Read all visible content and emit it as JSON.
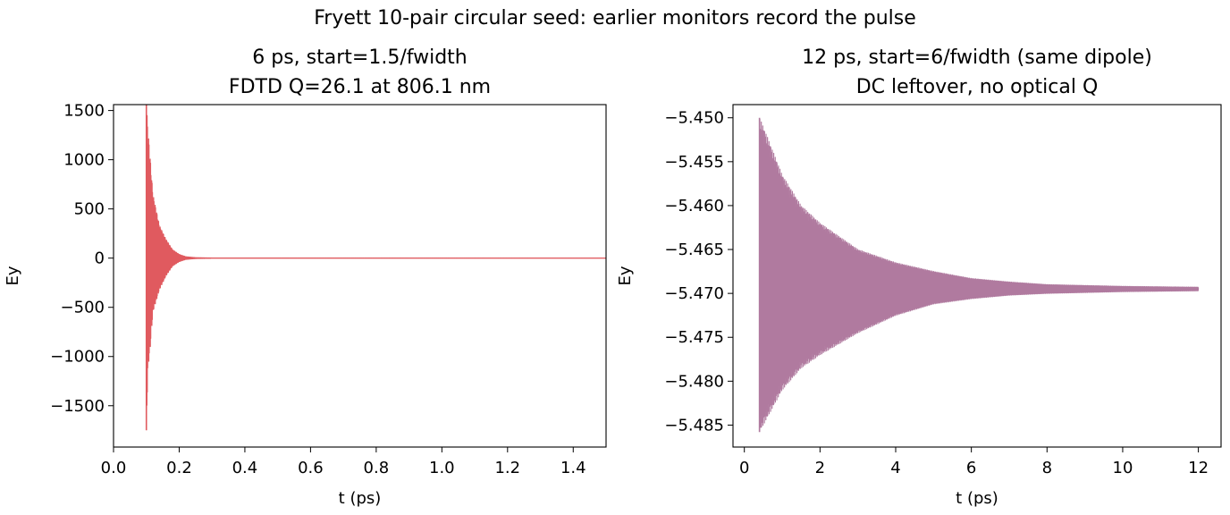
{
  "suptitle": "Fryett 10-pair circular seed: earlier monitors record the pulse",
  "chart_data": [
    {
      "type": "line",
      "title": "6 ps, start=1.5/fwidth",
      "subtitle": "FDTD Q=26.1 at 806.1 nm",
      "xlabel": "t (ps)",
      "ylabel": "Ey",
      "xlim": [
        0.0,
        1.5
      ],
      "ylim": [
        -1920,
        1560
      ],
      "xticks": [
        0.0,
        0.2,
        0.4,
        0.6,
        0.8,
        1.0,
        1.2,
        1.4
      ],
      "xtick_labels": [
        "0.0",
        "0.2",
        "0.4",
        "0.6",
        "0.8",
        "1.0",
        "1.2",
        "1.4"
      ],
      "yticks": [
        1500,
        1000,
        500,
        0,
        -500,
        -1000,
        -1500
      ],
      "ytick_labels": [
        "1500",
        "1000",
        "500",
        "0",
        "−500",
        "−1000",
        "−1500"
      ],
      "grid": false,
      "color": "#e05a5f",
      "series": [
        {
          "signal": "decaying oscillation",
          "t_start": 0.1,
          "t_end": 1.5,
          "baseline": 0,
          "peak_upper": 1580,
          "peak_lower": -1750,
          "envelope": [
            [
              0.1,
              1580,
              -1750
            ],
            [
              0.105,
              1300,
              -1100
            ],
            [
              0.11,
              1100,
              -1000
            ],
            [
              0.12,
              650,
              -550
            ],
            [
              0.14,
              330,
              -320
            ],
            [
              0.16,
              190,
              -180
            ],
            [
              0.18,
              85,
              -80
            ],
            [
              0.2,
              38,
              -36
            ],
            [
              0.22,
              14,
              -13
            ],
            [
              0.25,
              4,
              -4
            ],
            [
              0.3,
              1,
              -1
            ],
            [
              1.5,
              0.5,
              -0.5
            ]
          ]
        }
      ]
    },
    {
      "type": "line",
      "title": "12 ps, start=6/fwidth (same dipole)",
      "subtitle": "DC leftover, no optical Q",
      "xlabel": "t (ps)",
      "ylabel": "Ey",
      "xlim": [
        -0.3,
        12.6
      ],
      "ylim": [
        -5.4875,
        -5.4485
      ],
      "xticks": [
        0,
        2,
        4,
        6,
        8,
        10,
        12
      ],
      "xtick_labels": [
        "0",
        "2",
        "4",
        "6",
        "8",
        "10",
        "12"
      ],
      "yticks": [
        -5.45,
        -5.455,
        -5.46,
        -5.465,
        -5.47,
        -5.475,
        -5.48,
        -5.485
      ],
      "ytick_labels": [
        "−5.450",
        "−5.455",
        "−5.460",
        "−5.465",
        "−5.470",
        "−5.475",
        "−5.480",
        "−5.485"
      ],
      "grid": false,
      "color": "#b07a9f",
      "series": [
        {
          "signal": "decaying oscillation",
          "t_start": 0.4,
          "t_end": 12.0,
          "baseline": -5.4695,
          "peak_upper": -5.45,
          "peak_lower": -5.4858,
          "envelope": [
            [
              0.4,
              -5.45,
              -5.4858
            ],
            [
              0.5,
              -5.451,
              -5.485
            ],
            [
              1.0,
              -5.4565,
              -5.481
            ],
            [
              1.5,
              -5.46,
              -5.4785
            ],
            [
              2.0,
              -5.462,
              -5.477
            ],
            [
              3.0,
              -5.465,
              -5.4745
            ],
            [
              4.0,
              -5.4665,
              -5.4725
            ],
            [
              5.0,
              -5.4675,
              -5.4712
            ],
            [
              6.0,
              -5.4683,
              -5.4706
            ],
            [
              7.0,
              -5.4687,
              -5.4702
            ],
            [
              8.0,
              -5.469,
              -5.47
            ],
            [
              10.0,
              -5.4692,
              -5.4698
            ],
            [
              12.0,
              -5.4693,
              -5.4697
            ]
          ]
        }
      ]
    }
  ]
}
